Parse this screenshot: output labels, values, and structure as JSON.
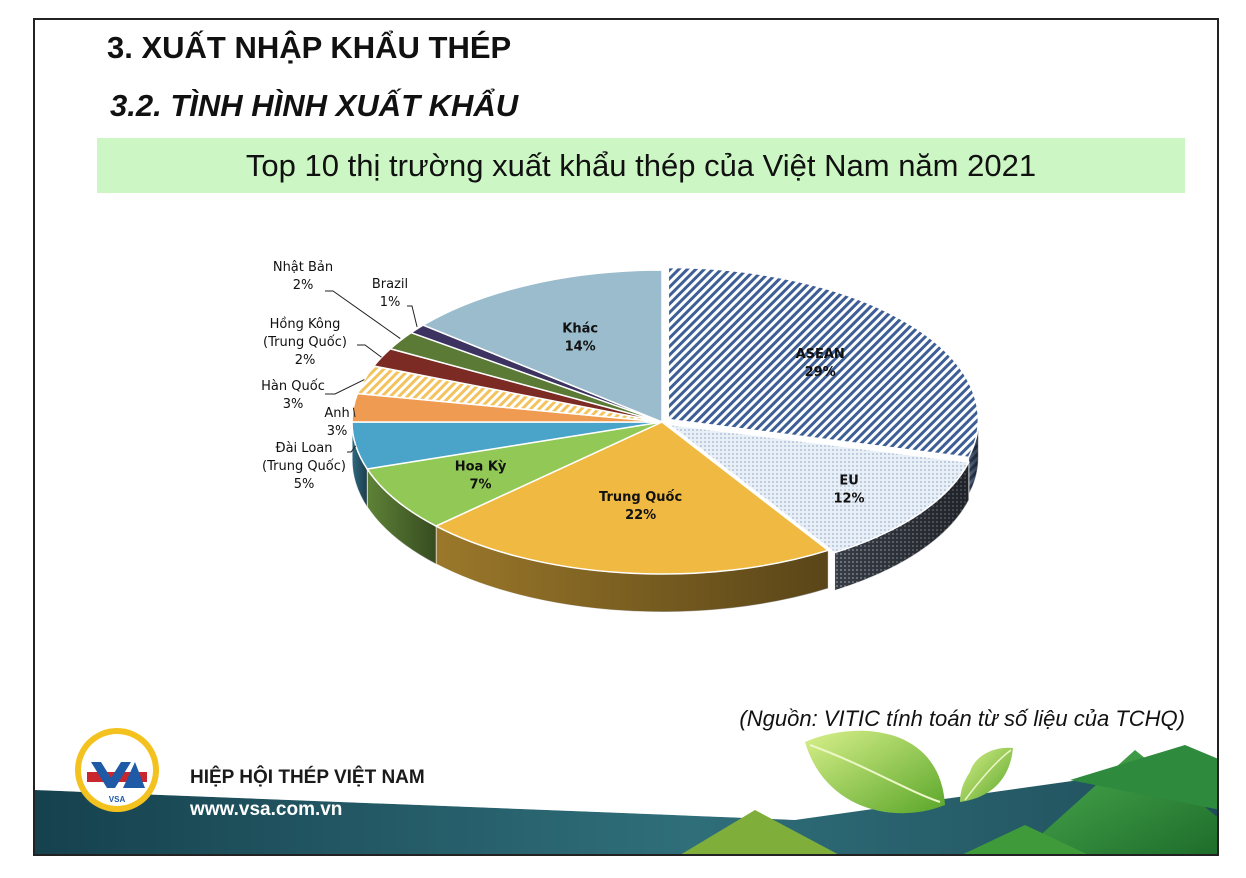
{
  "heading": "3. XUẤT NHẬP KHẨU THÉP",
  "subheading": "3.2. TÌNH HÌNH XUẤT KHẨU",
  "chart_data": {
    "type": "pie",
    "title": "Top 10 thị trường xuất khẩu thép của Việt Nam năm 2021",
    "categories": [
      "ASEAN",
      "EU",
      "Trung Quốc",
      "Hoa Kỳ",
      "Đài Loan (Trung Quốc)",
      "Anh",
      "Hàn Quốc",
      "Hồng Kông (Trung Quốc)",
      "Nhật Bản",
      "Brazil",
      "Khác"
    ],
    "values": [
      29,
      12,
      22,
      7,
      5,
      3,
      3,
      2,
      2,
      1,
      14
    ],
    "value_labels": [
      "29%",
      "12%",
      "22%",
      "7%",
      "5%",
      "3%",
      "3%",
      "2%",
      "2%",
      "1%",
      "14%"
    ],
    "colors": [
      "#3d5f95",
      "#dce6f2",
      "#f0b941",
      "#92c956",
      "#4aa3c8",
      "#ef9b52",
      "#fde0a0",
      "#7b2b24",
      "#5a7a35",
      "#3d3360",
      "#9bbccd"
    ],
    "style": "3d-exploded"
  },
  "source": "(Nguồn: VITIC tính toán từ số liệu của TCHQ)",
  "footer": {
    "logo_text": "VSA",
    "org_name": "HIỆP HỘI THÉP VIỆT NAM",
    "website": "www.vsa.com.vn"
  }
}
